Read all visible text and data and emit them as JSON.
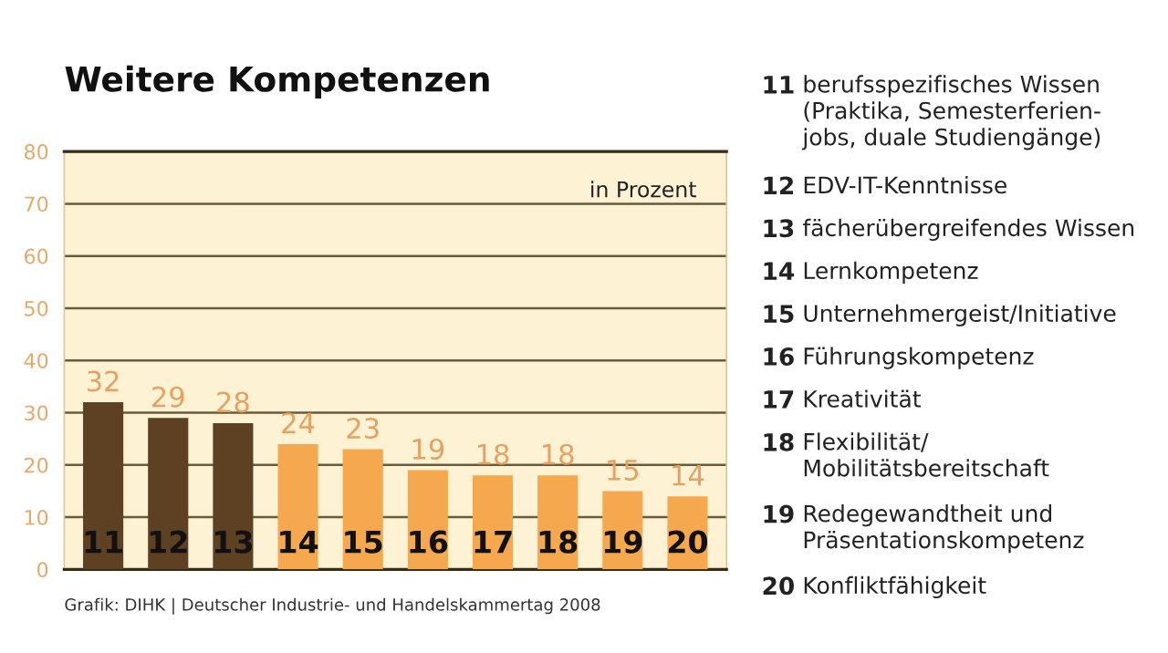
{
  "chart_data": {
    "type": "bar",
    "title": "Weitere Kompetenzen",
    "categories": [
      "11",
      "12",
      "13",
      "14",
      "15",
      "16",
      "17",
      "18",
      "19",
      "20"
    ],
    "values": [
      32,
      29,
      28,
      24,
      23,
      19,
      18,
      18,
      15,
      14
    ],
    "colors": [
      "#5e4122",
      "#5e4122",
      "#5e4122",
      "#f6a84e",
      "#f6a84e",
      "#f6a84e",
      "#f6a84e",
      "#f6a84e",
      "#f6a84e",
      "#f6a84e"
    ],
    "ylim": [
      0,
      80
    ],
    "yticks": [
      0,
      10,
      20,
      30,
      40,
      50,
      60,
      70,
      80
    ],
    "grid": "y",
    "data_labels": true,
    "annotations": [
      "in Prozent",
      "11 berufsspezifisches Wissen\n(Praktika, Semesterferien-\njobs, duale Studiengänge)",
      "12 EDV-IT-Kenntnisse",
      "13 fächerübergreifendes Wissen",
      "14 Lernkompetenz",
      "15 Unternehmergeist/Initiative",
      "16 Führungskompetenz",
      "17 Kreativität",
      "18 Flexibilität/\nMobilitätsbereitschaft",
      "19 Redegewandtheit und\nPräsentationskompetenz",
      "20 Konfliktfähigkeit",
      "Grafik: DIHK | Deutscher Industrie- und Handelskammertag 2008"
    ]
  }
}
